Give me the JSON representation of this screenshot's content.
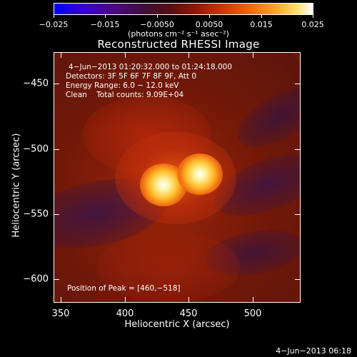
{
  "colorbar": {
    "ticks": [
      "−0.025",
      "−0.015",
      "−0.0050",
      "0.0050",
      "0.015",
      "0.025"
    ],
    "unit": "(photons cm⁻² s⁻¹ asec⁻²)"
  },
  "title": "Reconstructed RHESSI Image",
  "info": {
    "time_range": "4−Jun−2013 01:20:32.000 to 01:24:18.000",
    "detectors": "Detectors: 3F 5F 6F 7F 8F 9F, Att 0",
    "energy": "Energy Range: 6.0 − 12.0 keV",
    "clean": "Clean    Total counts: 9.09E+04",
    "peak": "Position of Peak = [460,−518]"
  },
  "axes": {
    "xlabel": "Heliocentric X (arcsec)",
    "ylabel": "Heliocentric Y (arcsec)",
    "xticks": [
      "350",
      "400",
      "450",
      "500"
    ],
    "yticks": [
      "−450",
      "−500",
      "−550",
      "−600"
    ]
  },
  "footer": {
    "timestamp": "4−Jun−2013 06:18"
  }
}
